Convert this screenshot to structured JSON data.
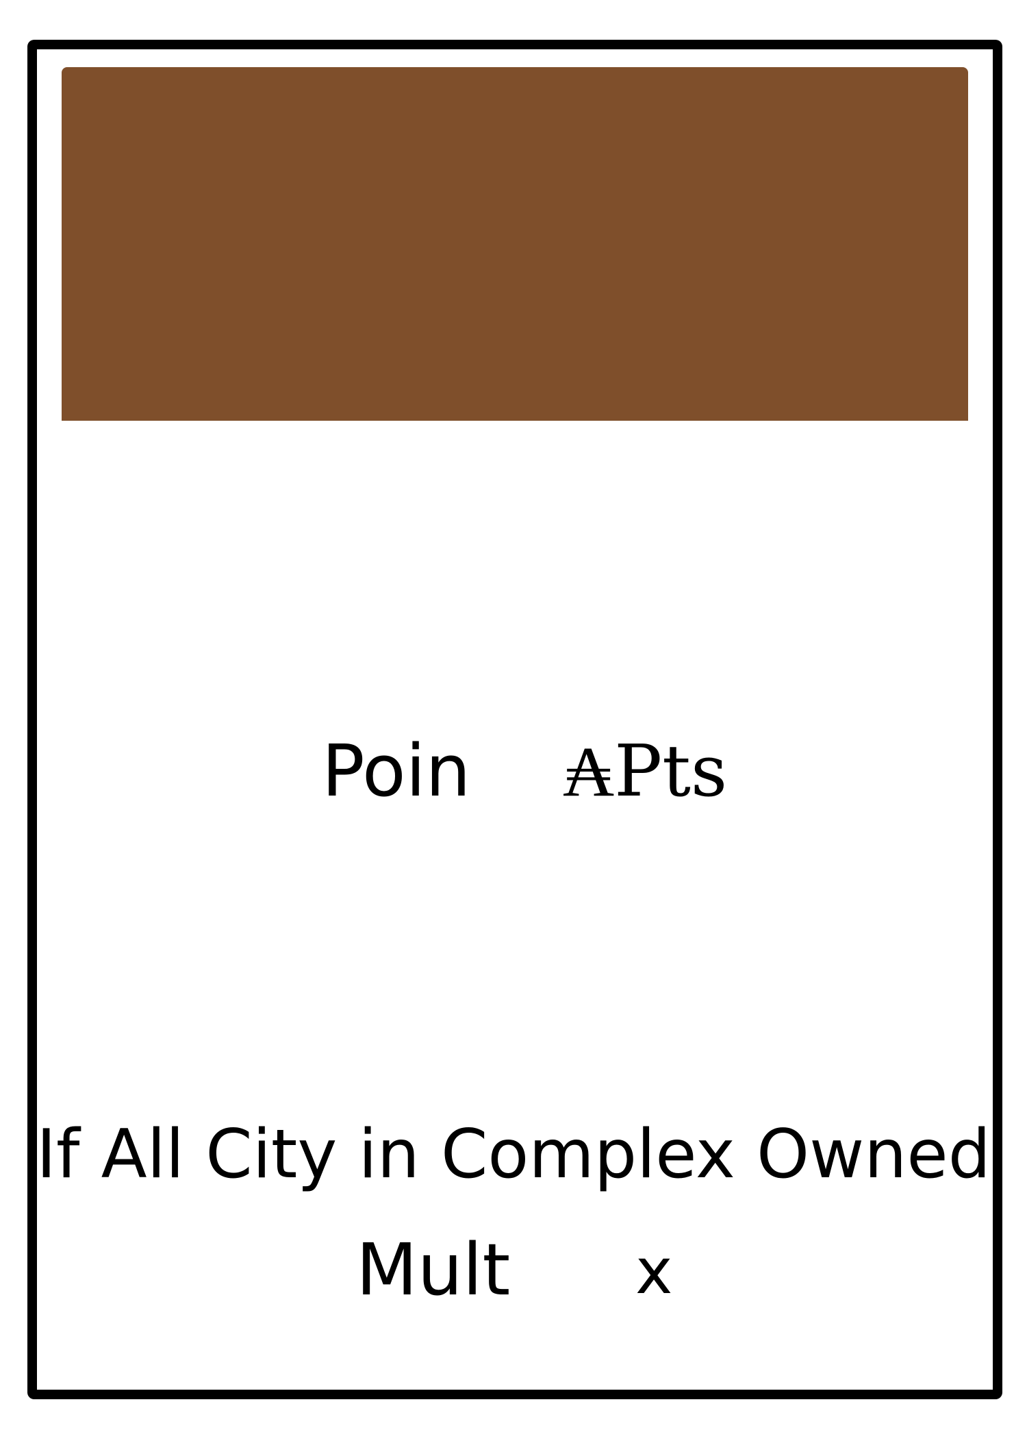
{
  "card": {
    "band_color": "#7f4f2b",
    "border_color": "#000000",
    "points_label": "Poin",
    "points_value": "₳Pts",
    "condition_text": "If All City in Complex Owned",
    "mult_label": "Mult",
    "mult_value": "x"
  }
}
